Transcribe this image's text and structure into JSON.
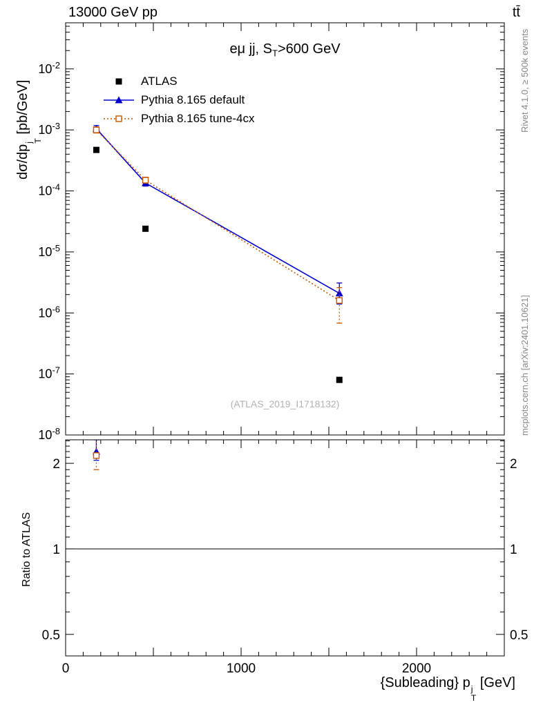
{
  "header": {
    "left": "13000 GeV pp",
    "right": "tt̄"
  },
  "side_notes": {
    "top_right": "Rivet 4.1.0, ≥ 500k events",
    "bottom_right": "mcplots.cern.ch [arXiv:2401.10621]"
  },
  "watermark": "(ATLAS_2019_I1718132)",
  "chart_data": {
    "type": "scatter",
    "yscale": "log",
    "title_text": "eμ jj, S_T>600 GeV",
    "title_segments": [
      {
        "text": "eμ jj, S"
      },
      {
        "sub": "T"
      },
      {
        "text": ">600 GeV"
      }
    ],
    "ylabel_text": "dσ/dp_T^j [pb/GeV]",
    "ylabel_segments": [
      {
        "text": "dσ/dp"
      },
      {
        "stack": {
          "sup": "j",
          "sub": "T"
        }
      },
      {
        "text": " [pb/GeV]"
      }
    ],
    "xlabel_text": "{Subleading} p_T^j [GeV]",
    "xlabel_segments": [
      {
        "text": "{Subleading} p"
      },
      {
        "stack": {
          "sup": "j",
          "sub": "T"
        }
      },
      {
        "text": " [GeV]"
      }
    ],
    "xlim": [
      0,
      2500
    ],
    "ylim": [
      1e-08,
      0.057
    ],
    "x_ticks": {
      "minor_step": 100,
      "major_step": 500,
      "labeled": [
        {
          "v": 0,
          "label": "0"
        },
        {
          "v": 1000,
          "label": "1000"
        },
        {
          "v": 2000,
          "label": "2000"
        }
      ]
    },
    "y_tick_exponents": [
      -2,
      -3,
      -4,
      -5,
      -6,
      -7,
      -8
    ],
    "series": [
      {
        "name": "ATLAS",
        "color": "#000000",
        "marker": "filled-square",
        "line": "none",
        "points": [
          {
            "x": 175,
            "y": 0.00047
          },
          {
            "x": 455,
            "y": 2.4e-05
          },
          {
            "x": 1560,
            "y": 8e-08
          }
        ]
      },
      {
        "name": "Pythia 8.165 default",
        "color": "#0000cd",
        "marker": "filled-triangle",
        "line": "solid",
        "points": [
          {
            "x": 175,
            "y": 0.00105,
            "ylo": 0.00093,
            "yhi": 0.00118
          },
          {
            "x": 455,
            "y": 0.000135,
            "ylo": 0.00012,
            "yhi": 0.000152
          },
          {
            "x": 1560,
            "y": 2.1e-06,
            "ylo": 1.4e-06,
            "yhi": 3.1e-06
          }
        ]
      },
      {
        "name": "Pythia 8.165 tune-4cx",
        "color": "#cc5500",
        "marker": "open-square",
        "line": "dotted",
        "points": [
          {
            "x": 175,
            "y": 0.001,
            "ylo": 0.00089,
            "yhi": 0.00112
          },
          {
            "x": 455,
            "y": 0.00015,
            "ylo": 0.000134,
            "yhi": 0.000168
          },
          {
            "x": 1560,
            "y": 1.6e-06,
            "ylo": 6.8e-07,
            "yhi": 2.6e-06
          }
        ]
      }
    ],
    "ratio": {
      "ylabel": "Ratio to ATLAS",
      "yscale": "log",
      "ylim": [
        0.42,
        2.42
      ],
      "reference_line": 1,
      "ticks": [
        {
          "v": 2,
          "label": "2"
        },
        {
          "v": 1,
          "label": "1"
        },
        {
          "v": 0.5,
          "label": "0.5"
        }
      ],
      "minor_ticks": [
        0.6,
        0.7,
        0.8,
        0.9,
        1.1,
        1.2,
        1.3,
        1.4,
        1.5,
        1.6,
        1.7,
        1.8,
        1.9,
        2.1,
        2.2,
        2.3,
        2.4
      ],
      "series": [
        {
          "name": "Pythia 8.165 default",
          "color": "#0000cd",
          "marker": "filled-triangle",
          "line": "solid",
          "points": [
            {
              "x": 175,
              "y": 2.2,
              "ylo": 2.05,
              "yhi": 2.42
            }
          ]
        },
        {
          "name": "Pythia 8.165 tune-4cx",
          "color": "#cc5500",
          "marker": "open-square",
          "line": "dotted",
          "points": [
            {
              "x": 175,
              "y": 2.13,
              "ylo": 1.9,
              "yhi": 2.45
            }
          ]
        }
      ]
    }
  }
}
